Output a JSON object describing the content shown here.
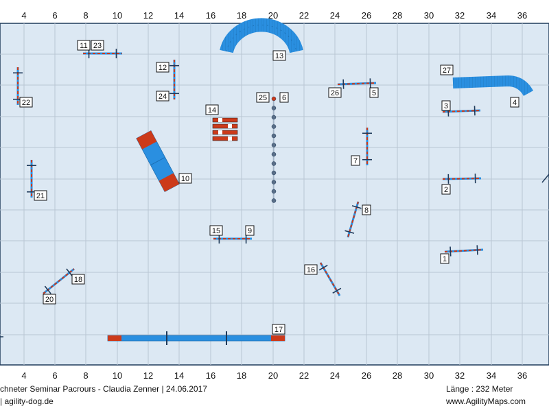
{
  "axis_ticks": [
    "4",
    "6",
    "8",
    "10",
    "12",
    "14",
    "16",
    "18",
    "20",
    "22",
    "24",
    "26",
    "28",
    "30",
    "32",
    "34",
    "36"
  ],
  "obstacle_labels": [
    "1",
    "2",
    "3",
    "4",
    "5",
    "6",
    "7",
    "8",
    "9",
    "10",
    "11",
    "12",
    "13",
    "14",
    "15",
    "16",
    "17",
    "18",
    "20",
    "21",
    "22",
    "23",
    "24",
    "25",
    "26",
    "27"
  ],
  "footer": {
    "left_line1": "chneter Seminar Pacrours - Claudia Zenner | 24.06.2017",
    "left_line2": "| agility-dog.de",
    "right_line1": "Länge : 232 Meter",
    "right_line2": "www.AgilityMaps.com"
  },
  "colors": {
    "field": "#dce8f3",
    "grid": "#b9c6d3",
    "blue": "#2a8fe0",
    "red": "#cc3a1a",
    "dark": "#1f3a5a"
  }
}
